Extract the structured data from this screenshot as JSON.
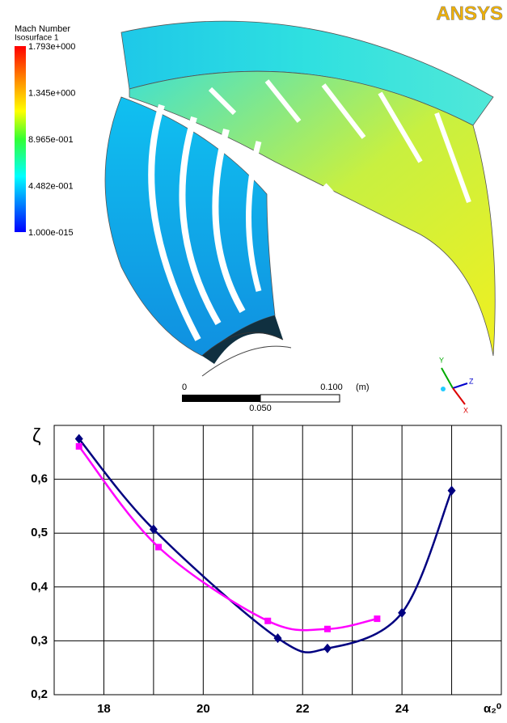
{
  "figure": {
    "logo": "ANSYS",
    "colorbar": {
      "title": "Mach Number",
      "subtitle": "Isosurface 1",
      "labels": [
        "1.793e+000",
        "1.345e+000",
        "8.965e-001",
        "4.482e-001",
        "1.000e-015"
      ]
    },
    "scale": {
      "start": "0",
      "end": "0.100",
      "unit": "(m)",
      "middle": "0.050"
    },
    "axes_triad": [
      "Y",
      "Z",
      "X"
    ]
  },
  "chart_data": {
    "type": "line",
    "y_label": "ζ",
    "x_label": "α₂⁰",
    "xlim": [
      17,
      26
    ],
    "xticks": [
      18,
      20,
      22,
      24
    ],
    "xminor": [
      19,
      21,
      23,
      25
    ],
    "ylim": [
      0.2,
      0.7
    ],
    "yticks": [
      {
        "value": 0.2,
        "label": "0,2"
      },
      {
        "value": 0.3,
        "label": "0,3"
      },
      {
        "value": 0.4,
        "label": "0,4"
      },
      {
        "value": 0.5,
        "label": "0,5"
      },
      {
        "value": 0.6,
        "label": "0,6"
      }
    ],
    "grid": true,
    "series": [
      {
        "color": "#000080",
        "marker": "diamond",
        "x": [
          17.5,
          19,
          21.5,
          22.5,
          24,
          25
        ],
        "values": [
          0.675,
          0.507,
          0.305,
          0.286,
          0.352,
          0.579
        ]
      },
      {
        "color": "#ff00ff",
        "marker": "square",
        "x": [
          17.5,
          19.1,
          21.3,
          22.5,
          23.5
        ],
        "values": [
          0.661,
          0.474,
          0.337,
          0.322,
          0.341
        ]
      }
    ]
  }
}
